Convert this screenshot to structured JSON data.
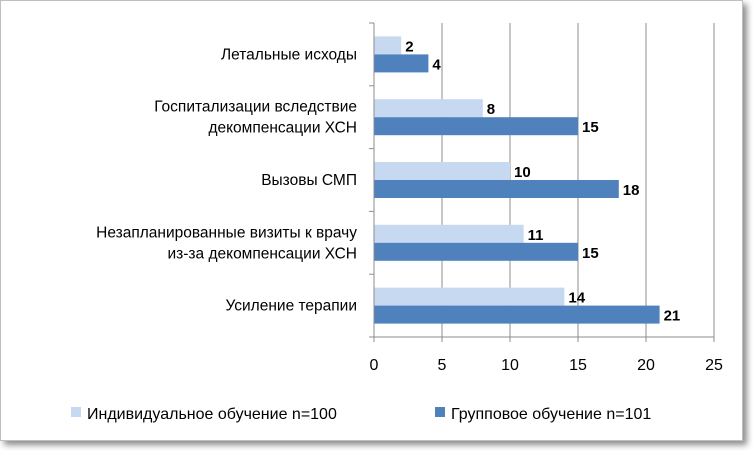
{
  "chart_data": {
    "type": "bar",
    "orientation": "horizontal",
    "categories": [
      [
        "Летальные исходы"
      ],
      [
        "Госпитализации вследствие",
        "декомпенсации ХСН"
      ],
      [
        "Вызовы СМП"
      ],
      [
        "Незапланированные визиты к врачу",
        "из-за декомпенсации ХСН"
      ],
      [
        "Усиление терапии"
      ]
    ],
    "series": [
      {
        "name": "Индивидуальное обучение n=100",
        "color": "#c6d9f1",
        "values": [
          2,
          8,
          10,
          11,
          14
        ]
      },
      {
        "name": "Групповое обучение n=101",
        "color": "#4f81bd",
        "values": [
          4,
          15,
          18,
          15,
          21
        ]
      }
    ],
    "xlim": [
      0,
      25
    ],
    "xticks": [
      0,
      5,
      10,
      15,
      20,
      25
    ],
    "grid": true,
    "legend": "bottom",
    "data_labels": true
  }
}
